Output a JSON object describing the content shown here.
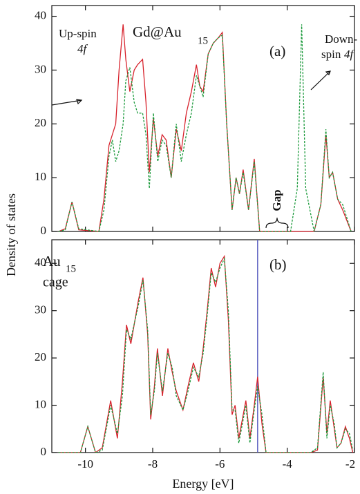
{
  "chart_data": [
    {
      "type": "line",
      "ylabel": "Density of states",
      "annotations": [
        "Up-spin",
        "4f",
        "Gd@Au",
        "15",
        "(a)",
        "Down-",
        "spin",
        "4f",
        "Gap"
      ],
      "x": [
        -10.8,
        -10.6,
        -10.4,
        -10.2,
        -9.6,
        -9.45,
        -9.3,
        -9.2,
        -9.1,
        -9.0,
        -8.88,
        -8.8,
        -8.68,
        -8.55,
        -8.45,
        -8.3,
        -8.2,
        -8.1,
        -7.98,
        -7.85,
        -7.72,
        -7.6,
        -7.45,
        -7.3,
        -7.15,
        -7.0,
        -6.85,
        -6.7,
        -6.6,
        -6.5,
        -6.35,
        -6.2,
        -6.05,
        -5.93,
        -5.8,
        -5.64,
        -5.52,
        -5.42,
        -5.31,
        -5.15,
        -4.98,
        -4.82,
        -4.5,
        -3.9,
        -3.7,
        -3.57,
        -3.45,
        -3.2,
        -3.0,
        -2.85,
        -2.75,
        -2.65,
        -2.5,
        -2.35,
        -2.1
      ],
      "series": [
        {
          "color": "#d7222c",
          "line_style": "solid",
          "values": [
            0,
            0.5,
            5.5,
            0.3,
            0,
            6,
            16,
            18,
            20,
            30,
            38.5,
            32,
            26,
            30,
            31,
            32,
            24,
            11,
            21,
            14,
            18,
            17,
            10,
            19,
            15,
            22,
            26,
            31,
            27,
            26,
            33,
            35,
            36,
            37,
            20,
            4,
            10,
            7,
            11.5,
            4,
            13.5,
            0,
            0,
            0,
            0,
            0,
            0,
            0,
            5,
            18,
            10,
            11,
            6,
            4,
            0
          ]
        },
        {
          "color": "#1c9a3c",
          "line_style": "dashed",
          "values": [
            0,
            0.3,
            5.5,
            0.5,
            0,
            4,
            14,
            17,
            13,
            15,
            20,
            28,
            30.5,
            24,
            22,
            22,
            18,
            8,
            22,
            13,
            17,
            16,
            10,
            20,
            13,
            18,
            22,
            29,
            27,
            25,
            33,
            35,
            36,
            36.5,
            20,
            4,
            10,
            7,
            11,
            4,
            13,
            0,
            0,
            0,
            8,
            38.5,
            8,
            0,
            5,
            19,
            10,
            11,
            6,
            5,
            0
          ]
        }
      ],
      "xlim": [
        -11,
        -2
      ],
      "xticks": [
        -10,
        -8,
        -6,
        -4,
        -2
      ],
      "ylim": [
        0,
        42
      ],
      "yticks": [
        0,
        10,
        20,
        30,
        40
      ]
    },
    {
      "type": "line",
      "xlabel": "Energy [eV]",
      "annotations": [
        "Au",
        "15",
        "cage",
        "(b)"
      ],
      "x": [
        -10.8,
        -10.15,
        -9.93,
        -9.7,
        -9.5,
        -9.25,
        -9.05,
        -8.9,
        -8.78,
        -8.65,
        -8.43,
        -8.29,
        -8.15,
        -8.06,
        -7.95,
        -7.86,
        -7.71,
        -7.55,
        -7.42,
        -7.3,
        -7.1,
        -6.95,
        -6.79,
        -6.63,
        -6.5,
        -6.38,
        -6.26,
        -6.13,
        -6.0,
        -5.87,
        -5.75,
        -5.64,
        -5.55,
        -5.44,
        -5.23,
        -5.11,
        -4.98,
        -4.88,
        -4.75,
        -4.63,
        -3.3,
        -3.1,
        -2.93,
        -2.82,
        -2.72,
        -2.6,
        -2.52,
        -2.4,
        -2.27,
        -2.15,
        -2.05
      ],
      "series": [
        {
          "color": "#d7222c",
          "line_style": "solid",
          "values": [
            0,
            0,
            5.5,
            0,
            1,
            11,
            3,
            15,
            27,
            23,
            32,
            37,
            25,
            7,
            14,
            22,
            12,
            22,
            17,
            13,
            9,
            14,
            19,
            15,
            22,
            30,
            39,
            35,
            40,
            41.5,
            28,
            8,
            10,
            3,
            11,
            3,
            10,
            16,
            6,
            0,
            0,
            0.5,
            16,
            4,
            11,
            5,
            1,
            2,
            5.5,
            3,
            0
          ]
        },
        {
          "color": "#1c9a3c",
          "line_style": "dashed",
          "values": [
            0,
            0,
            5.5,
            0,
            0.5,
            10,
            4,
            12,
            26,
            24,
            31,
            36.5,
            26,
            8,
            13,
            21,
            13,
            21,
            18,
            12,
            9,
            13,
            18,
            16,
            21,
            29,
            38,
            36,
            39,
            41,
            30,
            9,
            9,
            2,
            10,
            2,
            9,
            14,
            8,
            0,
            0,
            1,
            17,
            3,
            10,
            6,
            1,
            2,
            5,
            4,
            0.5
          ]
        }
      ],
      "vline": -4.88,
      "vline_color": "#5a5fc0",
      "xlim": [
        -11,
        -2
      ],
      "xticks": [
        -10,
        -8,
        -6,
        -4,
        -2
      ],
      "ylim": [
        0,
        45
      ],
      "yticks": [
        0,
        10,
        20,
        30,
        40
      ]
    }
  ]
}
